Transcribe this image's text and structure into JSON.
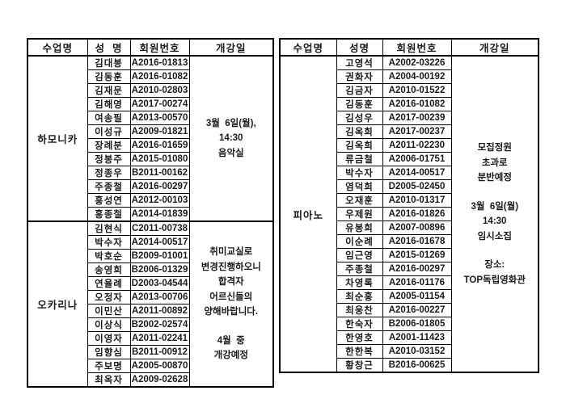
{
  "left_table": {
    "headers": [
      "수업명",
      "성  명",
      "회원번호",
      "개강일"
    ],
    "sections": [
      {
        "class_name": "하모니카",
        "members": [
          {
            "name": "김대봉",
            "id": "A2016-01813"
          },
          {
            "name": "김동훈",
            "id": "A2016-01082"
          },
          {
            "name": "김재문",
            "id": "A2010-02803"
          },
          {
            "name": "김해영",
            "id": "A2017-00274"
          },
          {
            "name": "여송필",
            "id": "A2013-00570"
          },
          {
            "name": "이성규",
            "id": "A2009-01821"
          },
          {
            "name": "장례분",
            "id": "A2016-01659"
          },
          {
            "name": "정봉주",
            "id": "A2015-01080"
          },
          {
            "name": "정종우",
            "id": "B2011-00162"
          },
          {
            "name": "주종철",
            "id": "A2016-00297"
          },
          {
            "name": "홍성연",
            "id": "A2012-00103"
          },
          {
            "name": "홍종철",
            "id": "A2014-01839"
          }
        ],
        "schedule_lines": [
          "3월  6일(월),",
          "14:30",
          "음악실"
        ]
      },
      {
        "class_name": "오카리나",
        "members": [
          {
            "name": "김현식",
            "id": "C2011-00738"
          },
          {
            "name": "박수자",
            "id": "A2014-00517"
          },
          {
            "name": "박호순",
            "id": "B2009-01001"
          },
          {
            "name": "송영희",
            "id": "B2006-01329"
          },
          {
            "name": "연율례",
            "id": "D2003-04544"
          },
          {
            "name": "오정자",
            "id": "A2013-00706"
          },
          {
            "name": "이민산",
            "id": "A2011-00892"
          },
          {
            "name": "이상식",
            "id": "B2002-02574"
          },
          {
            "name": "이영자",
            "id": "A2011-02241"
          },
          {
            "name": "임향심",
            "id": "B2011-00912"
          },
          {
            "name": "주보명",
            "id": "A2005-00870"
          },
          {
            "name": "최옥자",
            "id": "A2009-02628"
          }
        ],
        "schedule_lines": [
          "취미교실로",
          "변경진행하오니",
          "합격자",
          "어르신들의",
          "양해바랍니다.",
          "",
          "4월  중",
          "개강예정"
        ]
      }
    ]
  },
  "right_table": {
    "headers": [
      "수업명",
      "성명",
      "회원번호",
      "개강일"
    ],
    "sections": [
      {
        "class_name": "피아노",
        "members": [
          {
            "name": "고영석",
            "id": "A2002-03226"
          },
          {
            "name": "권화자",
            "id": "A2004-00192"
          },
          {
            "name": "김금자",
            "id": "A2010-01522"
          },
          {
            "name": "김동훈",
            "id": "A2016-01082"
          },
          {
            "name": "김성우",
            "id": "A2017-00239"
          },
          {
            "name": "김옥희",
            "id": "A2017-00237"
          },
          {
            "name": "김옥희",
            "id": "A2011-02230"
          },
          {
            "name": "류금철",
            "id": "A2006-01751"
          },
          {
            "name": "박수자",
            "id": "A2014-00517"
          },
          {
            "name": "염덕희",
            "id": "D2005-02450"
          },
          {
            "name": "오재훈",
            "id": "A2010-01317"
          },
          {
            "name": "우제원",
            "id": "A2016-01826"
          },
          {
            "name": "유봉희",
            "id": "A2007-00896"
          },
          {
            "name": "이순례",
            "id": "A2016-01678"
          },
          {
            "name": "임근영",
            "id": "A2015-01269"
          },
          {
            "name": "주종철",
            "id": "A2016-00297"
          },
          {
            "name": "차영록",
            "id": "A2016-01176"
          },
          {
            "name": "최순홍",
            "id": "A2005-01154"
          },
          {
            "name": "최웅찬",
            "id": "A2016-00227"
          },
          {
            "name": "한숙자",
            "id": "B2006-01805"
          },
          {
            "name": "한영호",
            "id": "A2001-11423"
          },
          {
            "name": "한한복",
            "id": "A2010-03152"
          },
          {
            "name": "황창근",
            "id": "B2016-00625"
          }
        ],
        "schedule_lines": [
          "모집정원",
          "초과로",
          "분반예정",
          "",
          "3월  6일(월)",
          "14:30",
          "임시소집",
          "",
          "장소:",
          "TOP독립영화관"
        ]
      }
    ]
  }
}
